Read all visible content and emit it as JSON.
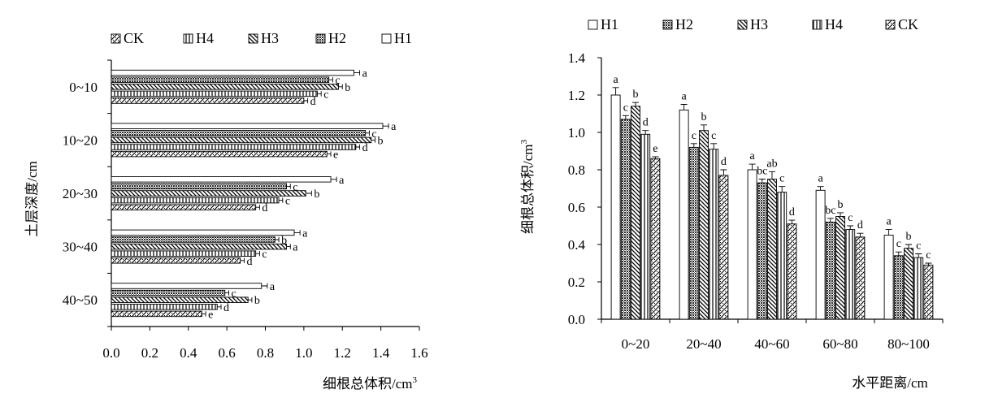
{
  "patterns": {
    "H1": "blank",
    "H2": "dense",
    "H3": "diag-left",
    "H4": "vertical",
    "CK": "diag-right-dots"
  },
  "chart_data": [
    {
      "type": "bar",
      "orientation": "horizontal",
      "title": "",
      "xlabel": "细根总体积/cm",
      "xlabel_sup": "3",
      "ylabel": "土层深度/cm",
      "xlim": [
        0,
        1.6
      ],
      "xticks": [
        "0.0",
        "0.2",
        "0.4",
        "0.6",
        "0.8",
        "1.0",
        "1.2",
        "1.4",
        "1.6"
      ],
      "grid": false,
      "legend_position": "top",
      "legend_order": [
        "CK",
        "H4",
        "H3",
        "H2",
        "H1"
      ],
      "categories": [
        "0~10",
        "10~20",
        "20~30",
        "30~40",
        "40~50"
      ],
      "series": [
        {
          "name": "H1",
          "values": [
            1.26,
            1.41,
            1.14,
            0.95,
            0.78
          ],
          "errors": [
            0.03,
            0.03,
            0.03,
            0.03,
            0.03
          ],
          "labels": [
            "a",
            "a",
            "a",
            "a",
            "a"
          ]
        },
        {
          "name": "H2",
          "values": [
            1.13,
            1.32,
            0.91,
            0.85,
            0.59
          ],
          "errors": [
            0.02,
            0.02,
            0.02,
            0.02,
            0.02
          ],
          "labels": [
            "c",
            "c",
            "c",
            "b",
            "c"
          ]
        },
        {
          "name": "H3",
          "values": [
            1.18,
            1.35,
            1.01,
            0.91,
            0.71
          ],
          "errors": [
            0.02,
            0.02,
            0.03,
            0.02,
            0.02
          ],
          "labels": [
            "b",
            "b",
            "b",
            "a",
            "b"
          ]
        },
        {
          "name": "H4",
          "values": [
            1.07,
            1.27,
            0.87,
            0.75,
            0.55
          ],
          "errors": [
            0.02,
            0.02,
            0.02,
            0.02,
            0.02
          ],
          "labels": [
            "c",
            "d",
            "c",
            "c",
            "d"
          ]
        },
        {
          "name": "CK",
          "values": [
            1.0,
            1.12,
            0.75,
            0.67,
            0.47
          ],
          "errors": [
            0.02,
            0.02,
            0.02,
            0.02,
            0.02
          ],
          "labels": [
            "d",
            "e",
            "d",
            "d",
            "e"
          ]
        }
      ]
    },
    {
      "type": "bar",
      "orientation": "vertical",
      "title": "",
      "xlabel": "水平距离/cm",
      "ylabel": "细根总体积/cm",
      "ylabel_sup": "3",
      "ylim": [
        0,
        1.4
      ],
      "yticks": [
        "0.0",
        "0.2",
        "0.4",
        "0.6",
        "0.8",
        "1.0",
        "1.2",
        "1.4"
      ],
      "grid": false,
      "legend_position": "top",
      "legend_order": [
        "H1",
        "H2",
        "H3",
        "H4",
        "CK"
      ],
      "categories": [
        "0~20",
        "20~40",
        "40~60",
        "60~80",
        "80~100"
      ],
      "series": [
        {
          "name": "H1",
          "values": [
            1.2,
            1.12,
            0.8,
            0.69,
            0.45
          ],
          "errors": [
            0.04,
            0.03,
            0.03,
            0.02,
            0.03
          ],
          "labels": [
            "a",
            "a",
            "a",
            "a",
            "a"
          ]
        },
        {
          "name": "H2",
          "values": [
            1.07,
            0.92,
            0.73,
            0.52,
            0.34
          ],
          "errors": [
            0.02,
            0.02,
            0.02,
            0.02,
            0.02
          ],
          "labels": [
            "c",
            "c",
            "bc",
            "bc",
            "c"
          ]
        },
        {
          "name": "H3",
          "values": [
            1.14,
            1.01,
            0.75,
            0.55,
            0.38
          ],
          "errors": [
            0.02,
            0.03,
            0.04,
            0.02,
            0.02
          ],
          "labels": [
            "b",
            "b",
            "ab",
            "b",
            "b"
          ]
        },
        {
          "name": "H4",
          "values": [
            0.99,
            0.91,
            0.68,
            0.48,
            0.33
          ],
          "errors": [
            0.02,
            0.03,
            0.03,
            0.02,
            0.02
          ],
          "labels": [
            "d",
            "c",
            "c",
            "c",
            "c"
          ]
        },
        {
          "name": "CK",
          "values": [
            0.86,
            0.77,
            0.51,
            0.44,
            0.29
          ],
          "errors": [
            0.01,
            0.03,
            0.02,
            0.02,
            0.01
          ],
          "labels": [
            "e",
            "d",
            "d",
            "d",
            "c"
          ]
        }
      ]
    }
  ]
}
